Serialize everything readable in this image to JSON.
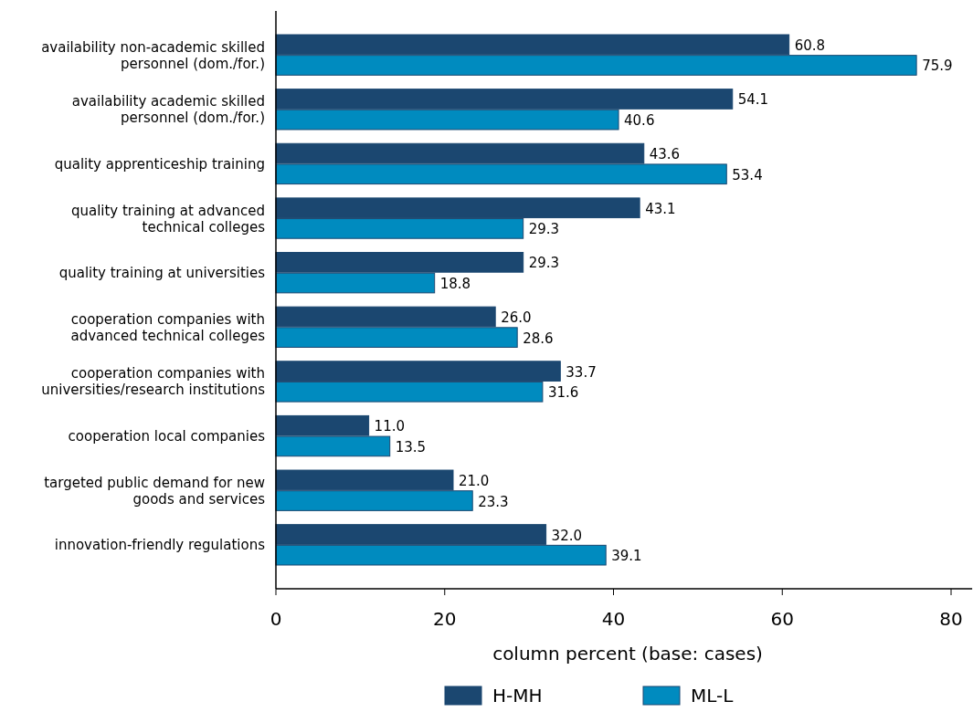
{
  "chart_data": {
    "type": "bar",
    "orientation": "horizontal",
    "xlabel": "column percent (base: cases)",
    "categories": [
      "availability non-academic skilled personnel (dom./for.)",
      "availability academic skilled personnel (dom./for.)",
      "quality apprenticeship training",
      "quality training at advanced technical colleges",
      "quality training at universities",
      "cooperation companies with advanced technical colleges",
      "cooperation companies with universities/research institutions",
      "cooperation local companies",
      "targeted public demand for new goods and services",
      "innovation-friendly regulations"
    ],
    "series": [
      {
        "name": "H-MH",
        "color": "#1b4770",
        "values": [
          60.8,
          54.1,
          43.6,
          43.1,
          29.3,
          26.0,
          33.7,
          11.0,
          21.0,
          32.0
        ],
        "value_labels": [
          "60.8",
          "54.1",
          "43.6",
          "43.1",
          "29.3",
          "26.0",
          "33.7",
          "11.0",
          "21.0",
          "32.0"
        ]
      },
      {
        "name": "ML-L",
        "color": "#008bbf",
        "values": [
          75.9,
          40.6,
          53.4,
          29.3,
          18.8,
          28.6,
          31.6,
          13.5,
          23.3,
          39.1
        ],
        "value_labels": [
          "75.9",
          "40.6",
          "53.4",
          "29.3",
          "18.8",
          "28.6",
          "31.6",
          "13.5",
          "23.3",
          "39.1"
        ]
      }
    ],
    "xlim": [
      0,
      82.5
    ],
    "xticks": [
      0,
      20,
      40,
      60,
      80
    ],
    "grid": false,
    "legend": "bottom"
  }
}
